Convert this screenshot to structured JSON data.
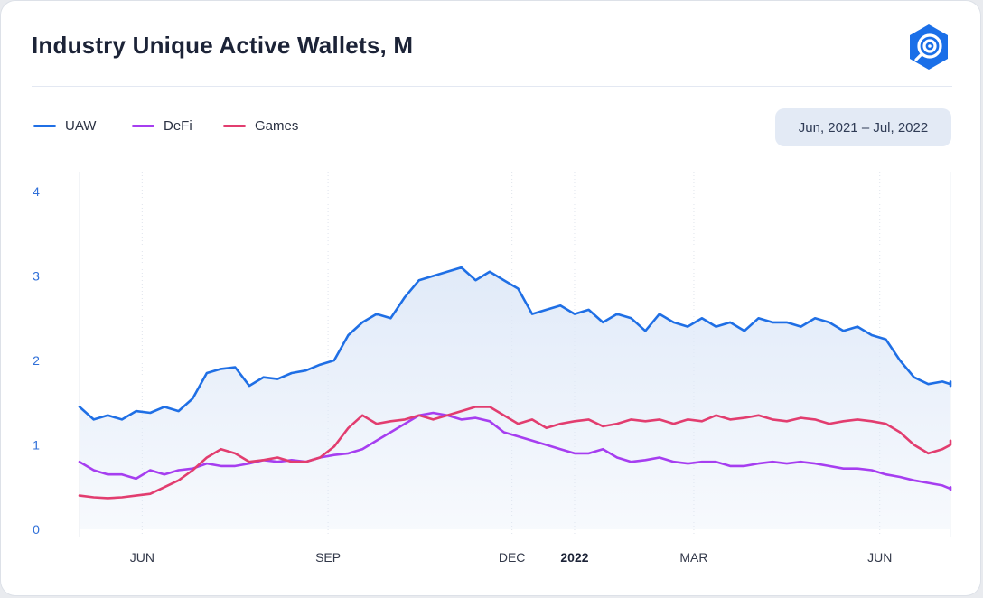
{
  "title": "Industry Unique Active Wallets, M",
  "icon": "dappradar-logo-icon",
  "date_range": "Jun, 2021 – Jul, 2022",
  "colors": {
    "UAW": "#1f6fe5",
    "DeFi": "#a63ef0",
    "Games": "#e23d6f",
    "area": "#dfe9f8"
  },
  "chart_data": {
    "type": "line",
    "title": "Industry Unique Active Wallets, M",
    "ylabel": "",
    "xlabel": "",
    "ylim": [
      0,
      4.2
    ],
    "yticks": [
      "0",
      "1",
      "2",
      "3",
      "4"
    ],
    "xticks": [
      "JUN",
      "SEP",
      "DEC",
      "2022",
      "MAR",
      "JUN"
    ],
    "grid": "vertical dotted lines at month ticks",
    "legend_position": "top-left",
    "x_start": "2021-05-01",
    "x_end": "2022-07-06",
    "x_step_days": 7,
    "series": [
      {
        "name": "UAW",
        "values": [
          1.45,
          1.3,
          1.35,
          1.3,
          1.4,
          1.38,
          1.45,
          1.4,
          1.55,
          1.85,
          1.9,
          1.92,
          1.7,
          1.8,
          1.78,
          1.85,
          1.88,
          1.95,
          2.0,
          2.3,
          2.45,
          2.55,
          2.5,
          2.75,
          2.95,
          3.0,
          3.05,
          3.1,
          2.95,
          3.05,
          2.95,
          2.85,
          2.55,
          2.6,
          2.65,
          2.55,
          2.6,
          2.45,
          2.55,
          2.5,
          2.35,
          2.55,
          2.45,
          2.4,
          2.5,
          2.4,
          2.45,
          2.35,
          2.5,
          2.45,
          2.45,
          2.4,
          2.5,
          2.45,
          2.35,
          2.4,
          2.3,
          2.25,
          2.0,
          1.8,
          1.72,
          1.75,
          1.72,
          1.75,
          1.7
        ]
      },
      {
        "name": "DeFi",
        "values": [
          0.8,
          0.7,
          0.65,
          0.65,
          0.6,
          0.7,
          0.65,
          0.7,
          0.72,
          0.78,
          0.75,
          0.75,
          0.78,
          0.82,
          0.8,
          0.82,
          0.8,
          0.85,
          0.88,
          0.9,
          0.95,
          1.05,
          1.15,
          1.25,
          1.35,
          1.38,
          1.35,
          1.3,
          1.32,
          1.28,
          1.15,
          1.1,
          1.05,
          1.0,
          0.95,
          0.9,
          0.9,
          0.95,
          0.85,
          0.8,
          0.82,
          0.85,
          0.8,
          0.78,
          0.8,
          0.8,
          0.75,
          0.75,
          0.78,
          0.8,
          0.78,
          0.8,
          0.78,
          0.75,
          0.72,
          0.72,
          0.7,
          0.65,
          0.62,
          0.58,
          0.55,
          0.52,
          0.48,
          0.5,
          0.47
        ]
      },
      {
        "name": "Games",
        "values": [
          0.4,
          0.38,
          0.37,
          0.38,
          0.4,
          0.42,
          0.5,
          0.58,
          0.7,
          0.85,
          0.95,
          0.9,
          0.8,
          0.82,
          0.85,
          0.8,
          0.8,
          0.85,
          0.98,
          1.2,
          1.35,
          1.25,
          1.28,
          1.3,
          1.35,
          1.3,
          1.35,
          1.4,
          1.45,
          1.45,
          1.35,
          1.25,
          1.3,
          1.2,
          1.25,
          1.28,
          1.3,
          1.22,
          1.25,
          1.3,
          1.28,
          1.3,
          1.25,
          1.3,
          1.28,
          1.35,
          1.3,
          1.32,
          1.35,
          1.3,
          1.28,
          1.32,
          1.3,
          1.25,
          1.28,
          1.3,
          1.28,
          1.25,
          1.15,
          1.0,
          0.9,
          0.95,
          1.0,
          1.05,
          1.02
        ]
      }
    ]
  }
}
